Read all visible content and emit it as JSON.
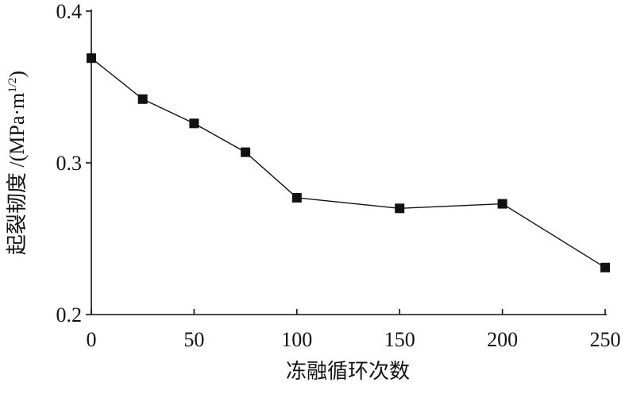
{
  "chart_data": {
    "type": "line",
    "x_label": "冻融循环次数",
    "y_label": [
      "起裂韧度 /(MPa·m",
      "1/2",
      ")"
    ],
    "x": [
      0,
      25,
      50,
      75,
      100,
      150,
      200,
      250
    ],
    "series": [
      {
        "color": "#111111",
        "marker": "square",
        "values": [
          0.369,
          0.342,
          0.326,
          0.307,
          0.277,
          0.27,
          0.273,
          0.231
        ]
      }
    ],
    "xlim": [
      0,
      250
    ],
    "xticks": [
      0,
      50,
      100,
      150,
      200,
      250
    ],
    "ylim": [
      0.2,
      0.4
    ],
    "yticks": [
      0.2,
      0.3,
      0.4
    ],
    "grid": false
  }
}
